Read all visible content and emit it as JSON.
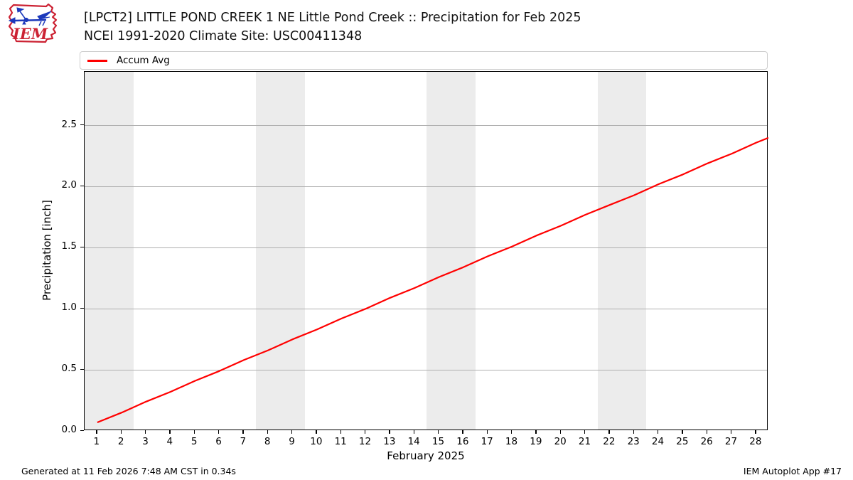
{
  "header": {
    "logo_text": "IEM",
    "title_line1": "[LPCT2] LITTLE POND CREEK 1 NE Little Pond Creek :: Precipitation for Feb 2025",
    "title_line2": "NCEI 1991-2020 Climate Site: USC00411348"
  },
  "legend": {
    "items": [
      {
        "label": "Accum Avg",
        "color": "#ff0000"
      }
    ]
  },
  "footer": {
    "generated": "Generated at 11 Feb 2026 7:48 AM CST in 0.34s",
    "app": "IEM Autoplot App #17"
  },
  "colors": {
    "line": "#ff0000",
    "weekend_band": "#ececec",
    "gridline": "#b0b0b0",
    "spine": "#000000",
    "logo_red": "#cc2233",
    "logo_blue": "#1c39bb"
  },
  "chart_data": {
    "type": "line",
    "title": "[LPCT2] LITTLE POND CREEK 1 NE Little Pond Creek :: Precipitation for Feb 2025",
    "subtitle": "NCEI 1991-2020 Climate Site: USC00411348",
    "xlabel": "February 2025",
    "ylabel": "Precipitation [inch]",
    "xlim": [
      0.48,
      28.5
    ],
    "ylim": [
      0,
      2.94
    ],
    "x_ticks": [
      1,
      2,
      3,
      4,
      5,
      6,
      7,
      8,
      9,
      10,
      11,
      12,
      13,
      14,
      15,
      16,
      17,
      18,
      19,
      20,
      21,
      22,
      23,
      24,
      25,
      26,
      27,
      28
    ],
    "y_ticks": [
      0.0,
      0.5,
      1.0,
      1.5,
      2.0,
      2.5
    ],
    "grid": "horizontal",
    "legend_position": "top",
    "weekend_bands": [
      [
        0.48,
        2.5
      ],
      [
        7.5,
        9.5
      ],
      [
        14.5,
        16.5
      ],
      [
        21.5,
        23.5
      ]
    ],
    "series": [
      {
        "name": "Accum Avg",
        "color": "#ff0000",
        "x": [
          1,
          2,
          3,
          4,
          5,
          6,
          7,
          8,
          9,
          10,
          11,
          12,
          13,
          14,
          15,
          16,
          17,
          18,
          19,
          20,
          21,
          22,
          23,
          24,
          25,
          26,
          27,
          28,
          28.5
        ],
        "values": [
          0.07,
          0.15,
          0.24,
          0.32,
          0.41,
          0.49,
          0.58,
          0.66,
          0.75,
          0.83,
          0.92,
          1.0,
          1.09,
          1.17,
          1.26,
          1.34,
          1.43,
          1.51,
          1.6,
          1.68,
          1.77,
          1.85,
          1.93,
          2.02,
          2.1,
          2.19,
          2.27,
          2.36,
          2.4
        ]
      }
    ]
  }
}
